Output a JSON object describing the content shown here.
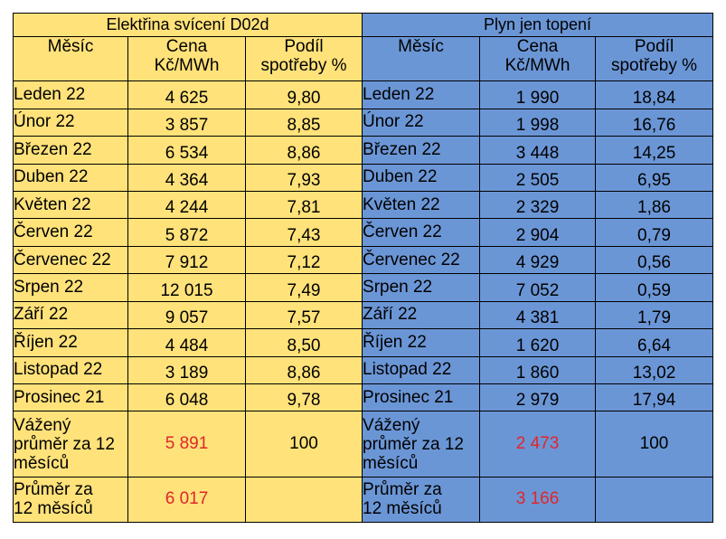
{
  "left": {
    "title": "Elektřina svícení D02d",
    "headers": {
      "month": "Měsíc",
      "price": "Cena\nKč/MWh",
      "share": "Podíl\nspotřeby %"
    },
    "rows": [
      {
        "month": "Leden 22",
        "price": "4 625",
        "share": "9,80"
      },
      {
        "month": "Únor  22",
        "price": "3 857",
        "share": "8,85"
      },
      {
        "month": "Březen 22",
        "price": "6 534",
        "share": "8,86"
      },
      {
        "month": "Duben 22",
        "price": "4 364",
        "share": "7,93"
      },
      {
        "month": "Květen 22",
        "price": "4 244",
        "share": "7,81"
      },
      {
        "month": "Červen 22",
        "price": "5 872",
        "share": "7,43"
      },
      {
        "month": "Červenec 22",
        "price": "7 912",
        "share": "7,12"
      },
      {
        "month": "Srpen 22",
        "price": "12 015",
        "share": "7,49"
      },
      {
        "month": "Září 22",
        "price": "9 057",
        "share": "7,57"
      },
      {
        "month": "Říjen 22",
        "price": "4 484",
        "share": "8,50"
      },
      {
        "month": "Listopad 22",
        "price": "3 189",
        "share": "8,86"
      },
      {
        "month": "Prosinec 21",
        "price": "6 048",
        "share": "9,78"
      }
    ],
    "weighted": {
      "label": "Vážený\nprůměr za 12\nměsíců",
      "price": "5 891",
      "share": "100"
    },
    "average": {
      "label": "Průměr za\n12 měsíců",
      "price": "6 017",
      "share": ""
    }
  },
  "right": {
    "title": "Plyn jen topení",
    "headers": {
      "month": "Měsíc",
      "price": "Cena\nKč/MWh",
      "share": "Podíl\nspotřeby %"
    },
    "rows": [
      {
        "month": "Leden 22",
        "price": "1 990",
        "share": "18,84"
      },
      {
        "month": "Únor  22",
        "price": "1 998",
        "share": "16,76"
      },
      {
        "month": "Březen 22",
        "price": "3 448",
        "share": "14,25"
      },
      {
        "month": "Duben 22",
        "price": "2 505",
        "share": "6,95"
      },
      {
        "month": "Květen 22",
        "price": "2 329",
        "share": "1,86"
      },
      {
        "month": "Červen 22",
        "price": "2 904",
        "share": "0,79"
      },
      {
        "month": "Červenec 22",
        "price": "4 929",
        "share": "0,56"
      },
      {
        "month": "Srpen 22",
        "price": "7 052",
        "share": "0,59"
      },
      {
        "month": "Září 22",
        "price": "4 381",
        "share": "1,79"
      },
      {
        "month": "Říjen 22",
        "price": "1 620",
        "share": "6,64"
      },
      {
        "month": "Listopad 22",
        "price": "1 860",
        "share": "13,02"
      },
      {
        "month": "Prosinec 21",
        "price": "2 979",
        "share": "17,94"
      }
    ],
    "weighted": {
      "label": "Vážený\nprůměr za 12\nměsíců",
      "price": "2 473",
      "share": "100"
    },
    "average": {
      "label": "Průměr za\n12 měsíců",
      "price": "3 166",
      "share": ""
    }
  },
  "colors": {
    "left_bg": "#ffe27a",
    "right_bg": "#6b96d6",
    "highlight": "#e0262a"
  }
}
